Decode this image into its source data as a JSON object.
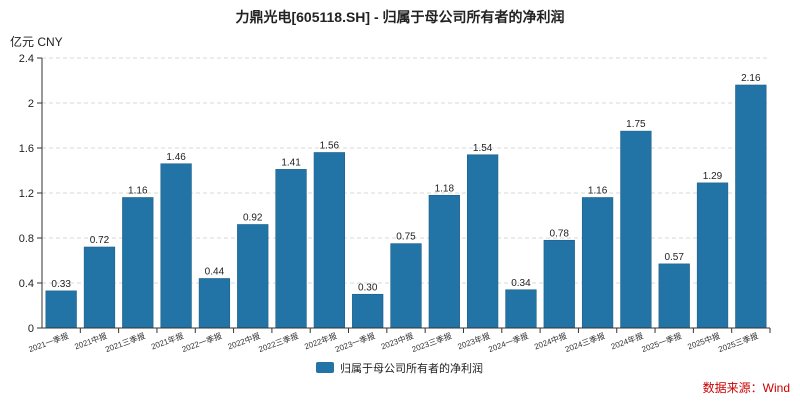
{
  "chart_data": {
    "type": "bar",
    "title": "力鼎光电[605118.SH] - 归属于母公司所有者的净利润",
    "ylabel": "亿元  CNY",
    "xlabel": "",
    "ylim": [
      0,
      2.4
    ],
    "yticks": [
      "0",
      "0.4",
      "0.8",
      "1.2",
      "1.6",
      "2",
      "2.4"
    ],
    "grid": true,
    "legend_position": "bottom-center",
    "categories": [
      "2021一季报",
      "2021中报",
      "2021三季报",
      "2021年报",
      "2022一季报",
      "2022中报",
      "2022三季报",
      "2022年报",
      "2023一季报",
      "2023中报",
      "2023三季报",
      "2023年报",
      "2024一季报",
      "2024中报",
      "2024三季报",
      "2024年报",
      "2025一季报",
      "2025中报",
      "2025三季报"
    ],
    "series": [
      {
        "name": "归属于母公司所有者的净利润",
        "color": "#2374a6",
        "values": [
          0.33,
          0.72,
          1.16,
          1.46,
          0.44,
          0.92,
          1.41,
          1.56,
          0.3,
          0.75,
          1.18,
          1.54,
          0.34,
          0.78,
          1.16,
          1.75,
          0.57,
          1.29,
          2.16
        ],
        "labels": [
          "0.33",
          "0.72",
          "1.16",
          "1.46",
          "0.44",
          "0.92",
          "1.41",
          "1.56",
          "0.30",
          "0.75",
          "1.18",
          "1.54",
          "0.34",
          "0.78",
          "1.16",
          "1.75",
          "0.57",
          "1.29",
          "2.16"
        ]
      }
    ],
    "source": "数据来源：Wind"
  }
}
